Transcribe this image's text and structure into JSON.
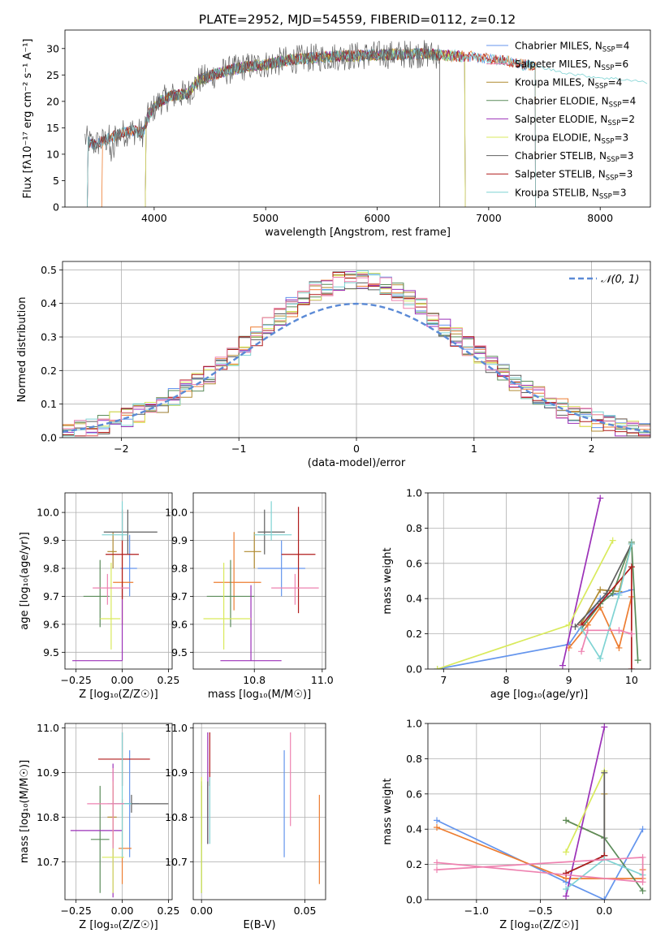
{
  "colors": [
    "#6495ed",
    "#ed7d31",
    "#b08a30",
    "#5b8c5a",
    "#9b30b8",
    "#d9ea5c",
    "#5f5f5f",
    "#b01c1c",
    "#7fd3d3",
    "#ee82b0"
  ],
  "chart_data": [
    {
      "id": "spectrum",
      "type": "line",
      "title": "PLATE=2952, MJD=54559, FIBERID=0112, z=0.12",
      "xlabel": "wavelength [Angstrom, rest frame]",
      "ylabel": "Flux [fλ10⁻¹⁷ erg cm⁻² s⁻¹ A⁻¹]",
      "xlim": [
        3200,
        8450
      ],
      "ylim": [
        0,
        33.5
      ],
      "xticks": [
        4000,
        5000,
        6000,
        7000,
        8000
      ],
      "yticks": [
        0,
        5,
        10,
        15,
        20,
        25,
        30
      ],
      "grid": false,
      "legend_position": "upper right",
      "continuum": [
        [
          3380,
          13.0
        ],
        [
          3450,
          11.8
        ],
        [
          3550,
          12.5
        ],
        [
          3650,
          13.5
        ],
        [
          3800,
          14.5
        ],
        [
          3900,
          14.0
        ],
        [
          3950,
          17.5
        ],
        [
          4050,
          20.0
        ],
        [
          4150,
          21.0
        ],
        [
          4300,
          21.5
        ],
        [
          4400,
          24.0
        ],
        [
          4600,
          25.5
        ],
        [
          4800,
          26.5
        ],
        [
          5000,
          27.0
        ],
        [
          5200,
          27.8
        ],
        [
          5400,
          28.2
        ],
        [
          5600,
          28.5
        ],
        [
          5800,
          28.6
        ],
        [
          6000,
          28.8
        ],
        [
          6200,
          28.9
        ],
        [
          6400,
          29.0
        ],
        [
          6600,
          28.7
        ],
        [
          6800,
          28.5
        ],
        [
          7000,
          28.2
        ],
        [
          7200,
          27.5
        ],
        [
          7300,
          27.0
        ],
        [
          7450,
          26.5
        ],
        [
          7600,
          25.8
        ],
        [
          7800,
          25.0
        ],
        [
          8000,
          24.5
        ],
        [
          8300,
          24.0
        ],
        [
          8420,
          23.5
        ]
      ],
      "data_end": 6560,
      "series": [
        {
          "name": "Chabrier MILES, N$_{SSP}$=4",
          "label": "Chabrier MILES, N",
          "sub": "SSP",
          "suffix": "=4",
          "range": [
            3400,
            7420
          ]
        },
        {
          "name": "Salpeter MILES, N$_{SSP}$=6",
          "label": "Salpeter MILES, N",
          "sub": "SSP",
          "suffix": "=6",
          "range": [
            3530,
            7420
          ]
        },
        {
          "name": "Kroupa MILES, N$_{SSP}$=4",
          "label": "Kroupa MILES, N",
          "sub": "SSP",
          "suffix": "=4",
          "range": [
            3920,
            6790
          ]
        },
        {
          "name": "Chabrier ELODIE, N$_{SSP}$=4",
          "label": "Chabrier ELODIE, N",
          "sub": "SSP",
          "suffix": "=4",
          "range": [
            3920,
            6790
          ]
        },
        {
          "name": "Salpeter ELODIE, N$_{SSP}$=2",
          "label": "Salpeter ELODIE, N",
          "sub": "SSP",
          "suffix": "=2",
          "range": [
            3920,
            6790
          ]
        },
        {
          "name": "Kroupa ELODIE, N$_{SSP}$=3",
          "label": "Kroupa ELODIE, N",
          "sub": "SSP",
          "suffix": "=3",
          "range": [
            3920,
            6790
          ]
        },
        {
          "name": "Chabrier STELIB, N$_{SSP}$=3",
          "label": "Chabrier STELIB, N",
          "sub": "SSP",
          "suffix": "=3",
          "range": [
            3400,
            6560
          ]
        },
        {
          "name": "Salpeter STELIB, N$_{SSP}$=3",
          "label": "Salpeter STELIB, N",
          "sub": "SSP",
          "suffix": "=3",
          "range": [
            3400,
            7420
          ]
        },
        {
          "name": "Kroupa STELIB, N$_{SSP}$=3",
          "label": "Kroupa STELIB, N",
          "sub": "SSP",
          "suffix": "=3",
          "range": [
            3400,
            7420
          ]
        }
      ]
    },
    {
      "id": "residual-histogram",
      "type": "histogram",
      "xlabel": "(data-model)/error",
      "ylabel": "Normed distribution",
      "xlim": [
        -2.5,
        2.5
      ],
      "ylim": [
        0,
        0.525
      ],
      "xticks": [
        -2,
        -1,
        0,
        1,
        2
      ],
      "xtick_labels": [
        "−2",
        "−1",
        "0",
        "1",
        "2"
      ],
      "yticks": [
        0.0,
        0.1,
        0.2,
        0.3,
        0.4,
        0.5
      ],
      "grid": true,
      "legend": "𝒩(0, 1)",
      "legend_position": "upper right",
      "bin_width": 0.1,
      "normal_curve": {
        "mean": 0,
        "sd": 1
      }
    },
    {
      "id": "age-vs-metallicity",
      "type": "errorbar",
      "xlabel": "Z [log₁₀(Z/Z☉)]",
      "ylabel": "age  [log₁₀(age/yr)]",
      "xlim": [
        -0.31,
        0.27
      ],
      "ylim": [
        9.44,
        10.07
      ],
      "xticks": [
        -0.25,
        0.0,
        0.25
      ],
      "xtick_labels": [
        "−0.25",
        "0.00",
        "0.25"
      ],
      "yticks": [
        9.5,
        9.6,
        9.7,
        9.8,
        9.9,
        10.0
      ],
      "grid": true,
      "points": [
        {
          "x": 0.04,
          "y": 9.8,
          "xerr": [
            0.05,
            0.04
          ],
          "yerr": [
            0.1,
            0.12
          ]
        },
        {
          "x": 0.0,
          "y": 9.75,
          "xerr": [
            0.05,
            0.06
          ],
          "yerr": [
            0.15,
            0.15
          ]
        },
        {
          "x": -0.05,
          "y": 9.86,
          "xerr": [
            0.03,
            0.02
          ],
          "yerr": [
            0.06,
            0.07
          ]
        },
        {
          "x": -0.12,
          "y": 9.7,
          "xerr": [
            0.09,
            0.05
          ],
          "yerr": [
            0.11,
            0.13
          ]
        },
        {
          "x": -0.0,
          "y": 9.47,
          "xerr": [
            0.27,
            0.0
          ],
          "yerr": [
            0.0,
            0.27
          ]
        },
        {
          "x": -0.06,
          "y": 9.62,
          "xerr": [
            0.06,
            0.05
          ],
          "yerr": [
            0.11,
            0.2
          ]
        },
        {
          "x": 0.03,
          "y": 9.93,
          "xerr": [
            0.13,
            0.16
          ],
          "yerr": [
            0.08,
            0.08
          ]
        },
        {
          "x": 0.0,
          "y": 9.85,
          "xerr": [
            0.09,
            0.09
          ],
          "yerr": [
            0.16,
            0.16
          ]
        },
        {
          "x": 0.0,
          "y": 9.92,
          "xerr": [
            0.11,
            0.03
          ],
          "yerr": [
            0.02,
            0.12
          ]
        },
        {
          "x": -0.08,
          "y": 9.73,
          "xerr": [
            0.08,
            0.12
          ],
          "yerr": [
            0.06,
            0.05
          ]
        }
      ]
    },
    {
      "id": "age-vs-mass",
      "type": "errorbar",
      "xlabel": "mass [log₁₀(M/M☉)]",
      "ylabel": "",
      "xlim": [
        10.62,
        11.01
      ],
      "ylim": [
        9.44,
        10.07
      ],
      "xticks": [
        10.8,
        11.0
      ],
      "xtick_labels": [
        "10.8",
        "11.0"
      ],
      "yticks": [
        9.5,
        9.6,
        9.7,
        9.8,
        9.9,
        10.0
      ],
      "grid": true,
      "points": [
        {
          "x": 10.88,
          "y": 9.8,
          "xerr": [
            0.07,
            0.07
          ],
          "yerr": [
            0.1,
            0.1
          ]
        },
        {
          "x": 10.74,
          "y": 9.75,
          "xerr": [
            0.06,
            0.08
          ],
          "yerr": [
            0.1,
            0.18
          ]
        },
        {
          "x": 10.8,
          "y": 9.86,
          "xerr": [
            0.03,
            0.02
          ],
          "yerr": [
            0.06,
            0.07
          ]
        },
        {
          "x": 10.73,
          "y": 9.7,
          "xerr": [
            0.07,
            0.07
          ],
          "yerr": [
            0.11,
            0.13
          ]
        },
        {
          "x": 10.79,
          "y": 9.47,
          "xerr": [
            0.09,
            0.09
          ],
          "yerr": [
            0.0,
            0.27
          ]
        },
        {
          "x": 10.71,
          "y": 9.62,
          "xerr": [
            0.06,
            0.08
          ],
          "yerr": [
            0.11,
            0.2
          ]
        },
        {
          "x": 10.83,
          "y": 9.93,
          "xerr": [
            0.02,
            0.06
          ],
          "yerr": [
            0.08,
            0.08
          ]
        },
        {
          "x": 10.93,
          "y": 9.85,
          "xerr": [
            0.05,
            0.05
          ],
          "yerr": [
            0.21,
            0.17
          ]
        },
        {
          "x": 10.85,
          "y": 9.92,
          "xerr": [
            0.05,
            0.06
          ],
          "yerr": [
            0.02,
            0.12
          ]
        },
        {
          "x": 10.92,
          "y": 9.73,
          "xerr": [
            0.07,
            0.07
          ],
          "yerr": [
            0.06,
            0.05
          ]
        }
      ]
    },
    {
      "id": "mass-weight-vs-age",
      "type": "line",
      "xlabel": "age  [log₁₀(age/yr)]",
      "ylabel": "mass weight",
      "xlim": [
        6.75,
        10.3
      ],
      "ylim": [
        0,
        1.0
      ],
      "xticks": [
        7,
        8,
        9,
        10
      ],
      "yticks": [
        0.0,
        0.2,
        0.4,
        0.6,
        0.8,
        1.0
      ],
      "grid": true,
      "series": [
        [
          [
            6.9,
            0.0
          ],
          [
            9.0,
            0.14
          ],
          [
            9.5,
            0.4
          ],
          [
            10.0,
            0.45
          ]
        ],
        [
          [
            9.0,
            0.12
          ],
          [
            9.3,
            0.25
          ],
          [
            9.5,
            0.35
          ],
          [
            9.8,
            0.12
          ],
          [
            10.0,
            0.41
          ]
        ],
        [
          [
            9.2,
            0.26
          ],
          [
            9.5,
            0.45
          ],
          [
            9.8,
            0.44
          ],
          [
            10.0,
            0.71
          ]
        ],
        [
          [
            9.2,
            0.23
          ],
          [
            9.5,
            0.37
          ],
          [
            9.7,
            0.43
          ],
          [
            10.0,
            0.72
          ],
          [
            10.1,
            0.05
          ]
        ],
        [
          [
            8.9,
            0.02
          ],
          [
            9.5,
            0.97
          ]
        ],
        [
          [
            6.9,
            0.0
          ],
          [
            9.0,
            0.25
          ],
          [
            9.7,
            0.73
          ]
        ],
        [
          [
            9.1,
            0.24
          ],
          [
            9.6,
            0.43
          ],
          [
            10.0,
            0.71
          ]
        ],
        [
          [
            9.2,
            0.25
          ],
          [
            10.0,
            0.58
          ],
          [
            10.0,
            0.0
          ]
        ],
        [
          [
            9.2,
            0.23
          ],
          [
            9.5,
            0.06
          ],
          [
            9.8,
            0.42
          ],
          [
            10.0,
            0.71
          ]
        ],
        [
          [
            9.2,
            0.1
          ],
          [
            9.3,
            0.22
          ],
          [
            9.8,
            0.22
          ],
          [
            10.0,
            0.2
          ]
        ]
      ]
    },
    {
      "id": "mass-vs-metallicity",
      "type": "errorbar",
      "xlabel": "Z [log₁₀(Z/Z☉)]",
      "ylabel": "mass [log₁₀(M/M☉)]",
      "xlim": [
        -0.31,
        0.27
      ],
      "ylim": [
        10.615,
        11.01
      ],
      "xticks": [
        -0.25,
        0.0,
        0.25
      ],
      "xtick_labels": [
        "−0.25",
        "0.00",
        "0.25"
      ],
      "yticks": [
        10.7,
        10.8,
        10.9,
        11.0
      ],
      "grid": true,
      "points": [
        {
          "x": 0.04,
          "y": 10.83,
          "xerr": [
            0.04,
            0.05
          ],
          "yerr": [
            0.12,
            0.12
          ]
        },
        {
          "x": 0.0,
          "y": 10.73,
          "xerr": [
            0.02,
            0.05
          ],
          "yerr": [
            0.08,
            0.11
          ]
        },
        {
          "x": -0.05,
          "y": 10.8,
          "xerr": [
            0.03,
            0.02
          ],
          "yerr": [
            0.06,
            0.07
          ]
        },
        {
          "x": -0.12,
          "y": 10.75,
          "xerr": [
            0.05,
            0.05
          ],
          "yerr": [
            0.12,
            0.12
          ]
        },
        {
          "x": -0.05,
          "y": 10.77,
          "xerr": [
            0.23,
            0.05
          ],
          "yerr": [
            0.15,
            0.15
          ]
        },
        {
          "x": -0.05,
          "y": 10.71,
          "xerr": [
            0.06,
            0.06
          ],
          "yerr": [
            0.08,
            0.17
          ]
        },
        {
          "x": 0.05,
          "y": 10.83,
          "xerr": [
            0.11,
            0.2
          ],
          "yerr": [
            0.02,
            0.02
          ]
        },
        {
          "x": 0.0,
          "y": 10.93,
          "xerr": [
            0.13,
            0.15
          ],
          "yerr": [
            0.06,
            0.06
          ]
        },
        {
          "x": 0.0,
          "y": 10.83,
          "xerr": [
            0.08,
            0.05
          ],
          "yerr": [
            0.12,
            0.16
          ]
        },
        {
          "x": -0.05,
          "y": 10.83,
          "xerr": [
            0.14,
            0.06
          ],
          "yerr": [
            0.1,
            0.08
          ]
        }
      ]
    },
    {
      "id": "mass-vs-extinction",
      "type": "errorbar",
      "xlabel": "E(B-V)",
      "ylabel": "",
      "xlim": [
        -0.004,
        0.06
      ],
      "ylim": [
        10.615,
        11.01
      ],
      "xticks": [
        0.0,
        0.05
      ],
      "xtick_labels": [
        "0.00",
        "0.05"
      ],
      "yticks": [
        10.7,
        10.8,
        10.9,
        11.0
      ],
      "grid": true,
      "points": [
        {
          "x": 0.04,
          "y": 10.83,
          "yerr": [
            0.12,
            0.12
          ]
        },
        {
          "x": 0.057,
          "y": 10.75,
          "yerr": [
            0.1,
            0.1
          ]
        },
        {
          "x": 0.0,
          "y": 10.8,
          "yerr": [
            0.06,
            0.07
          ]
        },
        {
          "x": 0.0,
          "y": 10.75,
          "yerr": [
            0.12,
            0.13
          ]
        },
        {
          "x": 0.003,
          "y": 10.86,
          "yerr": [
            0.12,
            0.13
          ]
        },
        {
          "x": 0.0,
          "y": 10.75,
          "yerr": [
            0.12,
            0.14
          ]
        },
        {
          "x": 0.003,
          "y": 10.83,
          "yerr": [
            0.09,
            0.05
          ]
        },
        {
          "x": 0.004,
          "y": 10.93,
          "yerr": [
            0.06,
            0.06
          ]
        },
        {
          "x": 0.004,
          "y": 10.8,
          "yerr": [
            0.06,
            0.09
          ]
        },
        {
          "x": 0.043,
          "y": 10.88,
          "yerr": [
            0.1,
            0.11
          ]
        }
      ]
    },
    {
      "id": "mass-weight-vs-metallicity",
      "type": "line",
      "xlabel": "Z [log₁₀(Z/Z☉)]",
      "ylabel": "mass weight",
      "xlim": [
        -1.38,
        0.36
      ],
      "ylim": [
        0,
        1.0
      ],
      "xticks": [
        -1.0,
        -0.5,
        0.0
      ],
      "xtick_labels": [
        "−1.0",
        "−0.5",
        "0.0"
      ],
      "yticks": [
        0.0,
        0.2,
        0.4,
        0.6,
        0.8,
        1.0
      ],
      "grid": true,
      "series": [
        [
          [
            -1.31,
            0.45
          ],
          [
            -0.3,
            0.1
          ],
          [
            0.0,
            0.0
          ],
          [
            0.3,
            0.4
          ]
        ],
        [
          [
            -1.31,
            0.41
          ],
          [
            -0.3,
            0.12
          ],
          [
            0.3,
            0.12
          ],
          [
            0.3,
            0.17
          ]
        ],
        [
          [
            -0.3,
            0.45
          ],
          [
            0.0,
            0.35
          ],
          [
            0.0,
            0.6
          ]
        ],
        [
          [
            -0.3,
            0.45
          ],
          [
            0.0,
            0.35
          ],
          [
            0.3,
            0.05
          ]
        ],
        [
          [
            -0.3,
            0.02
          ],
          [
            0.0,
            0.98
          ]
        ],
        [
          [
            -0.3,
            0.27
          ],
          [
            0.0,
            0.73
          ]
        ],
        [
          [
            -0.3,
            0.15
          ],
          [
            0.0,
            0.25
          ],
          [
            0.0,
            0.72
          ]
        ],
        [
          [
            -0.3,
            0.15
          ],
          [
            0.0,
            0.25
          ]
        ],
        [
          [
            -0.3,
            0.06
          ],
          [
            0.0,
            0.23
          ],
          [
            0.3,
            0.14
          ]
        ],
        [
          [
            -1.31,
            0.17
          ],
          [
            0.3,
            0.24
          ],
          [
            0.3,
            0.1
          ],
          [
            -1.31,
            0.21
          ]
        ]
      ]
    }
  ]
}
